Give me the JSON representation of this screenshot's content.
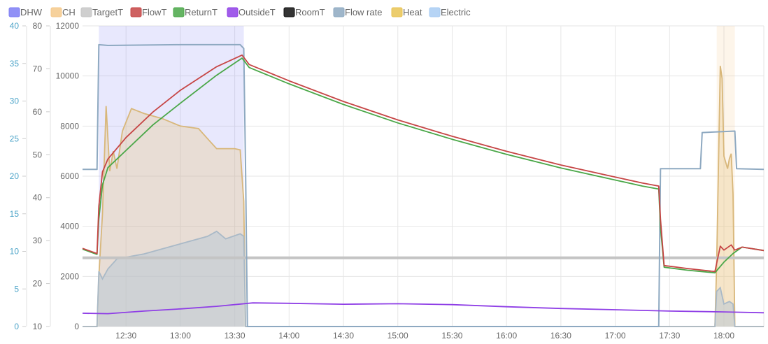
{
  "chart_data": {
    "type": "line",
    "legend": [
      {
        "name": "DHW",
        "color": "#7e7ef4"
      },
      {
        "name": "CH",
        "color": "#f5c98b"
      },
      {
        "name": "TargetT",
        "color": "#c7c7c7"
      },
      {
        "name": "FlowT",
        "color": "#c64545"
      },
      {
        "name": "ReturnT",
        "color": "#4aa748"
      },
      {
        "name": "OutsideT",
        "color": "#8f3fe6"
      },
      {
        "name": "RoomT",
        "color": "#111111"
      },
      {
        "name": "Flow rate",
        "color": "#8ea9c1"
      },
      {
        "name": "Heat",
        "color": "#e9c454"
      },
      {
        "name": "Electric",
        "color": "#a9cdf3"
      }
    ],
    "x_ticks": [
      "12:30",
      "13:00",
      "13:30",
      "14:00",
      "14:30",
      "15:00",
      "15:30",
      "16:00",
      "16:30",
      "17:00",
      "17:30",
      "18:00"
    ],
    "x_range": [
      "12:06",
      "18:22"
    ],
    "axes": {
      "flow_rate": {
        "ticks": [
          "0",
          "5",
          "10",
          "15",
          "20",
          "25",
          "30",
          "35",
          "40"
        ],
        "range": [
          0,
          40
        ]
      },
      "temperature": {
        "ticks": [
          "10",
          "20",
          "30",
          "40",
          "50",
          "60",
          "70",
          "80"
        ],
        "range": [
          10,
          80
        ]
      },
      "power": {
        "ticks": [
          "0",
          "2000",
          "4000",
          "6000",
          "8000",
          "10000",
          "12000"
        ],
        "range": [
          0,
          12000
        ]
      }
    },
    "shaded_periods": [
      {
        "series": "DHW",
        "start": "12:15",
        "end": "13:35",
        "color": "#7e7ef4"
      },
      {
        "series": "CH",
        "start": "17:56",
        "end": "18:06",
        "color": "#f5c98b"
      }
    ],
    "series": [
      {
        "name": "Flow rate",
        "axis": "flow_rate",
        "points": [
          [
            "12:06",
            20.9
          ],
          [
            "12:14",
            20.9
          ],
          [
            "12:15",
            37.5
          ],
          [
            "12:20",
            37.4
          ],
          [
            "13:00",
            37.5
          ],
          [
            "13:33",
            37.5
          ],
          [
            "13:35",
            37.0
          ],
          [
            "13:36",
            20.8
          ],
          [
            "13:37",
            0
          ],
          [
            "17:24",
            0
          ],
          [
            "17:25",
            21.0
          ],
          [
            "17:47",
            21.0
          ],
          [
            "17:48",
            25.8
          ],
          [
            "18:06",
            26.0
          ],
          [
            "18:07",
            21.0
          ],
          [
            "18:22",
            20.9
          ]
        ]
      },
      {
        "name": "FlowT",
        "axis": "temperature",
        "points": [
          [
            "12:06",
            28.2
          ],
          [
            "12:14",
            27.0
          ],
          [
            "12:15",
            38
          ],
          [
            "12:17",
            46
          ],
          [
            "12:20",
            49
          ],
          [
            "12:30",
            54
          ],
          [
            "12:45",
            60
          ],
          [
            "13:00",
            65
          ],
          [
            "13:20",
            70.5
          ],
          [
            "13:34",
            73.2
          ],
          [
            "13:38",
            71.0
          ],
          [
            "14:00",
            67.2
          ],
          [
            "14:30",
            62.4
          ],
          [
            "15:00",
            58.1
          ],
          [
            "15:30",
            54.3
          ],
          [
            "16:00",
            50.8
          ],
          [
            "16:30",
            47.6
          ],
          [
            "17:00",
            44.8
          ],
          [
            "17:15",
            43.4
          ],
          [
            "17:24",
            42.7
          ],
          [
            "17:25",
            35
          ],
          [
            "17:27",
            24.2
          ],
          [
            "17:40",
            23.5
          ],
          [
            "17:55",
            22.8
          ],
          [
            "17:58",
            28.7
          ],
          [
            "18:00",
            27.8
          ],
          [
            "18:04",
            29.0
          ],
          [
            "18:06",
            27.8
          ],
          [
            "18:10",
            28.5
          ],
          [
            "18:22",
            27.7
          ]
        ]
      },
      {
        "name": "ReturnT",
        "axis": "temperature",
        "points": [
          [
            "12:06",
            28.0
          ],
          [
            "12:14",
            26.8
          ],
          [
            "12:15",
            35
          ],
          [
            "12:17",
            43
          ],
          [
            "12:20",
            47
          ],
          [
            "12:30",
            51
          ],
          [
            "12:45",
            57
          ],
          [
            "13:00",
            62
          ],
          [
            "13:20",
            68.5
          ],
          [
            "13:34",
            72.5
          ],
          [
            "13:38",
            70.3
          ],
          [
            "14:00",
            66.5
          ],
          [
            "14:30",
            61.7
          ],
          [
            "15:00",
            57.4
          ],
          [
            "15:30",
            53.6
          ],
          [
            "16:00",
            50.1
          ],
          [
            "16:30",
            46.9
          ],
          [
            "17:00",
            44.1
          ],
          [
            "17:15",
            42.7
          ],
          [
            "17:24",
            42.0
          ],
          [
            "17:25",
            33
          ],
          [
            "17:27",
            23.8
          ],
          [
            "17:40",
            23.1
          ],
          [
            "17:55",
            22.5
          ],
          [
            "18:00",
            25.0
          ],
          [
            "18:05",
            27.0
          ],
          [
            "18:10",
            28.5
          ],
          [
            "18:22",
            27.7
          ]
        ]
      },
      {
        "name": "TargetT",
        "axis": "temperature",
        "points": [
          [
            "12:06",
            26.0
          ],
          [
            "18:22",
            26.0
          ]
        ]
      },
      {
        "name": "OutsideT",
        "axis": "temperature",
        "points": [
          [
            "12:06",
            13.1
          ],
          [
            "12:20",
            13.0
          ],
          [
            "12:40",
            13.6
          ],
          [
            "13:00",
            14.1
          ],
          [
            "13:20",
            14.7
          ],
          [
            "13:40",
            15.5
          ],
          [
            "14:00",
            15.4
          ],
          [
            "14:30",
            15.2
          ],
          [
            "15:00",
            15.3
          ],
          [
            "15:30",
            15.1
          ],
          [
            "16:00",
            14.6
          ],
          [
            "16:30",
            14.2
          ],
          [
            "17:00",
            13.9
          ],
          [
            "17:30",
            13.6
          ],
          [
            "18:00",
            13.4
          ],
          [
            "18:22",
            13.2
          ]
        ]
      },
      {
        "name": "Heat",
        "axis": "power",
        "points": [
          [
            "12:06",
            0
          ],
          [
            "12:14",
            0
          ],
          [
            "12:15",
            2000
          ],
          [
            "12:17",
            4500
          ],
          [
            "12:19",
            8800
          ],
          [
            "12:21",
            6200
          ],
          [
            "12:23",
            7000
          ],
          [
            "12:25",
            6300
          ],
          [
            "12:28",
            7800
          ],
          [
            "12:33",
            8700
          ],
          [
            "12:40",
            8500
          ],
          [
            "12:50",
            8300
          ],
          [
            "13:00",
            8000
          ],
          [
            "13:10",
            7900
          ],
          [
            "13:15",
            7500
          ],
          [
            "13:20",
            7100
          ],
          [
            "13:25",
            7100
          ],
          [
            "13:30",
            7100
          ],
          [
            "13:33",
            7050
          ],
          [
            "13:35",
            5000
          ],
          [
            "13:36",
            0
          ],
          [
            "17:55",
            0
          ],
          [
            "17:56",
            2500
          ],
          [
            "17:58",
            10400
          ],
          [
            "17:59",
            9900
          ],
          [
            "18:00",
            6800
          ],
          [
            "18:02",
            6300
          ],
          [
            "18:03",
            6700
          ],
          [
            "18:04",
            6900
          ],
          [
            "18:05",
            5300
          ],
          [
            "18:06",
            0
          ],
          [
            "18:22",
            0
          ]
        ]
      },
      {
        "name": "Electric",
        "axis": "power",
        "points": [
          [
            "12:06",
            0
          ],
          [
            "12:14",
            0
          ],
          [
            "12:15",
            2200
          ],
          [
            "12:17",
            1900
          ],
          [
            "12:20",
            2300
          ],
          [
            "12:25",
            2700
          ],
          [
            "12:40",
            2900
          ],
          [
            "13:00",
            3300
          ],
          [
            "13:15",
            3600
          ],
          [
            "13:20",
            3800
          ],
          [
            "13:25",
            3500
          ],
          [
            "13:33",
            3700
          ],
          [
            "13:35",
            3600
          ],
          [
            "13:36",
            0
          ],
          [
            "17:55",
            0
          ],
          [
            "17:56",
            1400
          ],
          [
            "17:58",
            1550
          ],
          [
            "18:00",
            900
          ],
          [
            "18:03",
            1000
          ],
          [
            "18:05",
            900
          ],
          [
            "18:06",
            0
          ],
          [
            "18:22",
            0
          ]
        ]
      }
    ]
  }
}
